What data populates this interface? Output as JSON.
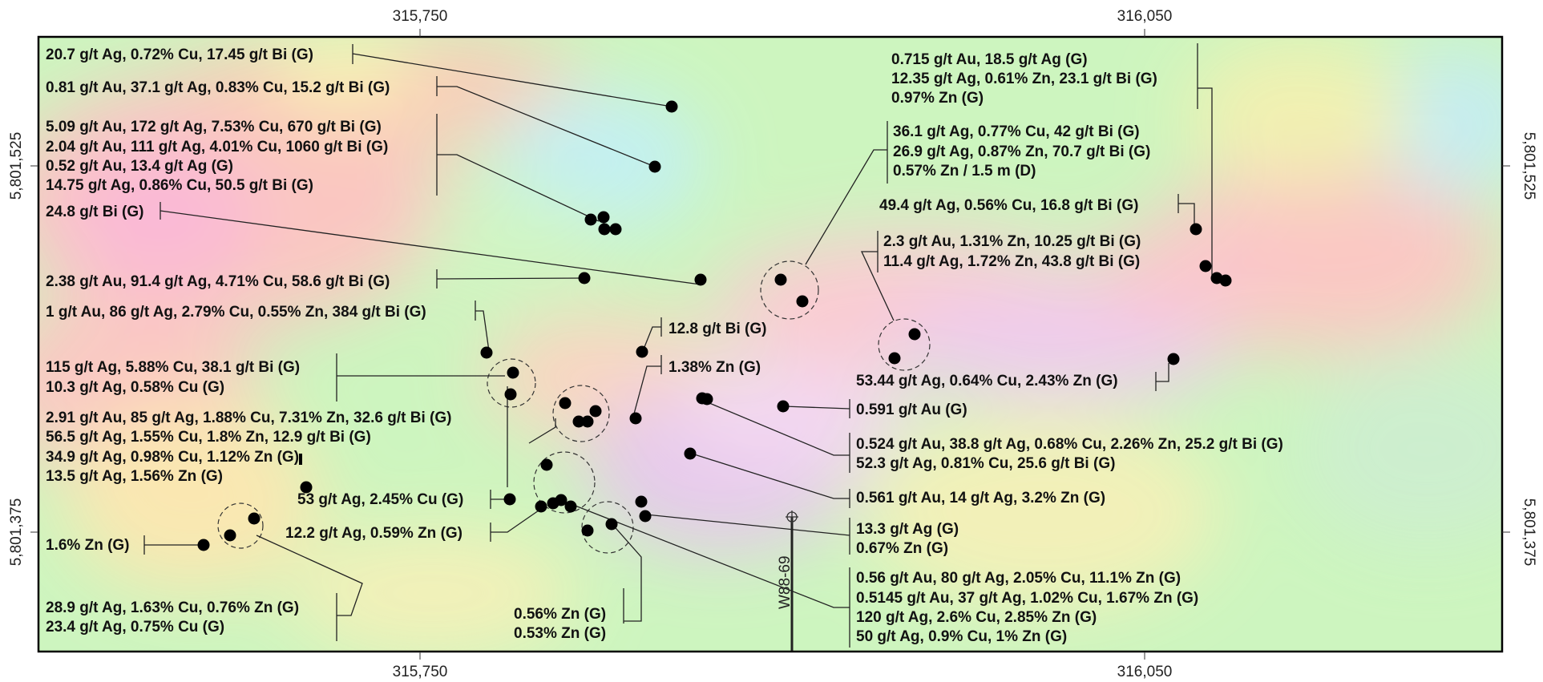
{
  "axes": {
    "x_top": [
      "315,750",
      "316,050"
    ],
    "x_bottom": [
      "315,750",
      "316,050"
    ],
    "y_left": [
      "5,801,525",
      "5,801,375"
    ],
    "y_right": [
      "5,801,525",
      "5,801,375"
    ]
  },
  "drillhole": {
    "label": "W88-69"
  },
  "colors": {
    "frame": "#000000",
    "sample_dot": "#000000",
    "leader": "#222222"
  },
  "annotations": [
    {
      "id": "a1",
      "lines": [
        "20.7 g/t Ag, 0.72% Cu, 17.45 g/t Bi (G)"
      ]
    },
    {
      "id": "a2",
      "lines": [
        "0.81 g/t Au, 37.1 g/t Ag, 0.83% Cu, 15.2 g/t Bi (G)"
      ]
    },
    {
      "id": "a3",
      "lines": [
        "5.09 g/t Au, 172 g/t Ag, 7.53% Cu, 670 g/t Bi (G)",
        "2.04 g/t Au, 111 g/t Ag, 4.01% Cu, 1060 g/t Bi (G)",
        "0.52 g/t Au, 13.4 g/t Ag (G)",
        "14.75 g/t Ag, 0.86% Cu, 50.5 g/t Bi (G)"
      ]
    },
    {
      "id": "a4",
      "lines": [
        "24.8 g/t Bi (G)"
      ]
    },
    {
      "id": "a5",
      "lines": [
        "2.38 g/t Au, 91.4 g/t Ag, 4.71% Cu, 58.6 g/t Bi (G)"
      ]
    },
    {
      "id": "a6",
      "lines": [
        "1 g/t Au, 86 g/t Ag, 2.79% Cu, 0.55% Zn, 384 g/t Bi (G)"
      ]
    },
    {
      "id": "a7",
      "lines": [
        "115 g/t Ag, 5.88% Cu, 38.1 g/t Bi (G)",
        "10.3 g/t Ag, 0.58% Cu (G)"
      ]
    },
    {
      "id": "a8",
      "lines": [
        "2.91 g/t Au, 85 g/t Ag, 1.88% Cu, 7.31% Zn, 32.6 g/t Bi (G)",
        "56.5 g/t Ag, 1.55% Cu, 1.8% Zn, 12.9 g/t Bi (G)",
        "34.9 g/t Ag, 0.98% Cu, 1.12% Zn (G)",
        "13.5 g/t Ag, 1.56% Zn (G)"
      ]
    },
    {
      "id": "a9",
      "lines": [
        "53 g/t Ag, 2.45% Cu (G)"
      ]
    },
    {
      "id": "a10",
      "lines": [
        "12.2 g/t Ag, 0.59% Zn (G)"
      ]
    },
    {
      "id": "a11",
      "lines": [
        "1.6% Zn (G)"
      ]
    },
    {
      "id": "a12",
      "lines": [
        "28.9 g/t Ag, 1.63% Cu, 0.76% Zn (G)",
        "23.4 g/t Ag, 0.75% Cu (G)"
      ]
    },
    {
      "id": "a13",
      "lines": [
        "0.56% Zn (G)",
        "0.53% Zn (G)"
      ]
    },
    {
      "id": "a14",
      "lines": [
        "12.8 g/t Bi (G)"
      ]
    },
    {
      "id": "a15",
      "lines": [
        "1.38% Zn (G)"
      ]
    },
    {
      "id": "a16",
      "lines": [
        "0.715 g/t Au, 18.5 g/t Ag (G)",
        "12.35 g/t Ag, 0.61% Zn, 23.1 g/t Bi (G)",
        "0.97% Zn (G)"
      ]
    },
    {
      "id": "a17",
      "lines": [
        "36.1 g/t Ag, 0.77% Cu, 42 g/t Bi (G)",
        "26.9 g/t Ag, 0.87% Zn, 70.7 g/t Bi (G)",
        "0.57% Zn / 1.5 m (D)"
      ]
    },
    {
      "id": "a18",
      "lines": [
        "49.4 g/t Ag, 0.56% Cu, 16.8 g/t Bi (G)"
      ]
    },
    {
      "id": "a19",
      "lines": [
        "2.3 g/t Au, 1.31% Zn, 10.25 g/t Bi (G)",
        "11.4 g/t Ag, 1.72% Zn, 43.8 g/t Bi (G)"
      ]
    },
    {
      "id": "a20",
      "lines": [
        "53.44 g/t Ag, 0.64% Cu, 2.43% Zn (G)"
      ]
    },
    {
      "id": "a21",
      "lines": [
        "0.591 g/t Au (G)"
      ]
    },
    {
      "id": "a22",
      "lines": [
        "0.524 g/t Au, 38.8 g/t Ag, 0.68% Cu, 2.26% Zn, 25.2 g/t Bi (G)",
        "52.3 g/t Ag, 0.81% Cu, 25.6 g/t Bi (G)"
      ]
    },
    {
      "id": "a23",
      "lines": [
        "0.561 g/t Au, 14 g/t Ag, 3.2% Zn (G)"
      ]
    },
    {
      "id": "a24",
      "lines": [
        "13.3 g/t Ag (G)",
        "0.67% Zn (G)"
      ]
    },
    {
      "id": "a25",
      "lines": [
        "0.56 g/t Au, 80 g/t Ag, 2.05% Cu, 11.1% Zn (G)",
        "0.5145 g/t Au, 37 g/t Ag, 1.02% Cu, 1.67% Zn (G)",
        "120 g/t Ag, 2.6% Cu, 2.85% Zn (G)",
        "50 g/t Ag, 0.9% Cu, 1% Zn (G)"
      ]
    }
  ]
}
